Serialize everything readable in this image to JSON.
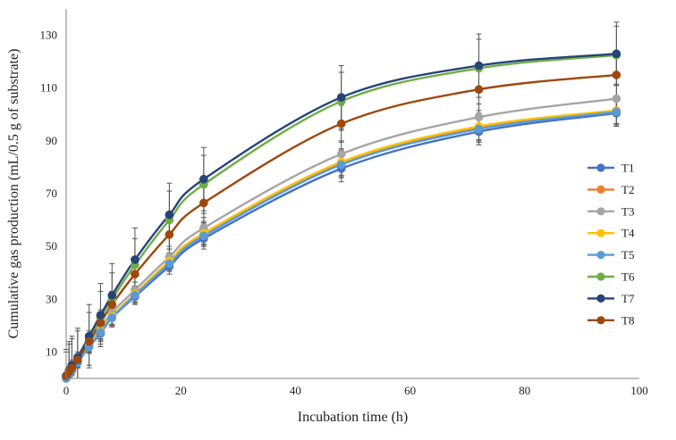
{
  "chart_data": {
    "type": "line",
    "title": "",
    "xlabel": "Incubation time (h)",
    "ylabel": "Cumulative gas production (mL/0.5 g of substrate)",
    "xlim": [
      0,
      100
    ],
    "ylim": [
      0,
      140
    ],
    "xticks": [
      0,
      20,
      40,
      60,
      80,
      100
    ],
    "yticks": [
      10,
      30,
      50,
      70,
      90,
      110,
      130
    ],
    "grid": false,
    "legend_position": "right",
    "x": [
      0,
      0.5,
      1,
      2,
      4,
      6,
      8,
      12,
      18,
      24,
      48,
      72,
      96
    ],
    "series": [
      {
        "name": "T1",
        "color": "#4472c4",
        "values": [
          0,
          1.5,
          3,
          6,
          12,
          17,
          23,
          31,
          42.5,
          53,
          79.5,
          93.5,
          100.5
        ],
        "err": [
          0.5,
          0.8,
          1.5,
          2,
          2.5,
          3,
          3,
          3,
          3,
          4,
          5,
          5,
          5
        ]
      },
      {
        "name": "T2",
        "color": "#ed7d31",
        "values": [
          0,
          2,
          3.5,
          6.5,
          12.5,
          18,
          23.5,
          32,
          44,
          54.5,
          81.5,
          95,
          101.5
        ],
        "err": [
          0.5,
          0.8,
          1.5,
          2,
          2.5,
          3,
          3,
          3,
          3,
          4,
          5,
          5,
          5
        ]
      },
      {
        "name": "T3",
        "color": "#a5a5a5",
        "values": [
          0,
          2,
          4,
          7,
          13,
          19,
          25,
          33.5,
          46,
          57,
          85,
          99,
          106
        ],
        "err": [
          0.5,
          0.8,
          1.5,
          2,
          2.5,
          3,
          3,
          3,
          3,
          4,
          5,
          5,
          5
        ]
      },
      {
        "name": "T4",
        "color": "#ffc000",
        "values": [
          0,
          2,
          3.5,
          6.5,
          12.5,
          18,
          23.5,
          32,
          44.5,
          55,
          82,
          95.5,
          101.5
        ],
        "err": [
          0.5,
          0.8,
          1.5,
          2,
          2.5,
          3,
          3,
          3,
          3,
          4,
          5,
          5,
          5
        ]
      },
      {
        "name": "T5",
        "color": "#5b9bd5",
        "values": [
          0,
          1.5,
          3,
          6,
          12,
          17.5,
          23,
          31.5,
          43.5,
          54,
          81,
          94.5,
          101
        ],
        "err": [
          0.5,
          0.8,
          1.5,
          2,
          2.5,
          3,
          3,
          3,
          3,
          4,
          5,
          5,
          5
        ]
      },
      {
        "name": "T6",
        "color": "#70ad47",
        "values": [
          1,
          3,
          5,
          8,
          15,
          23,
          30,
          43,
          60,
          73.5,
          105,
          117.5,
          122.5
        ],
        "err": [
          9,
          10,
          10,
          10,
          10,
          10,
          10,
          10,
          11,
          11,
          11,
          11,
          11
        ]
      },
      {
        "name": "T7",
        "color": "#264478",
        "values": [
          1,
          3,
          5,
          8,
          16,
          24,
          31.5,
          45,
          62,
          75.5,
          106.5,
          118.5,
          123
        ],
        "err": [
          10,
          11,
          11,
          11,
          12,
          12,
          12,
          12,
          12,
          12,
          12,
          12,
          12
        ]
      },
      {
        "name": "T8",
        "color": "#9e480e",
        "values": [
          1,
          2.5,
          4,
          7,
          14,
          21,
          28,
          39.5,
          54.5,
          66.5,
          96.5,
          109.5,
          115
        ],
        "err": [
          1,
          2,
          3,
          3,
          4,
          5,
          5,
          6,
          7,
          7,
          7,
          8,
          8
        ]
      }
    ]
  }
}
